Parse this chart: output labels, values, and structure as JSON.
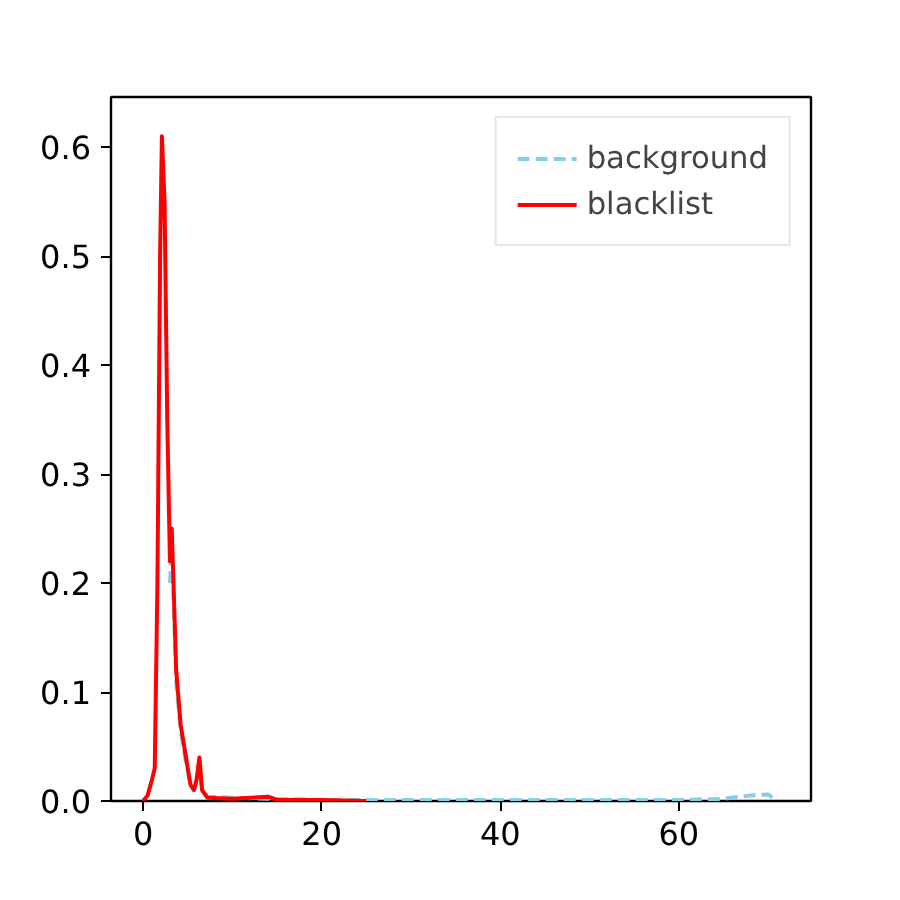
{
  "chart_data": {
    "type": "line",
    "xlim": [
      -3.6,
      74.8
    ],
    "ylim": [
      0,
      0.646
    ],
    "xticks": [
      0,
      20,
      40,
      60
    ],
    "yticks": [
      {
        "value": 0,
        "label": "0.0"
      },
      0.1,
      0.2,
      0.3,
      0.4,
      0.5,
      0.6
    ],
    "grid": false,
    "legend": "top right",
    "series": [
      {
        "name": "background",
        "color": "#87ceeb",
        "line_style": "dashed",
        "x": [
          3.0,
          3.2,
          3.4,
          3.7,
          4.2,
          4.8,
          5.3,
          5.7,
          6.0,
          6.3,
          6.6,
          7.2,
          10,
          14,
          20,
          30,
          40,
          50,
          60,
          65,
          68,
          70,
          71
        ],
        "values": [
          0.2,
          0.23,
          0.19,
          0.11,
          0.065,
          0.035,
          0.015,
          0.01,
          0.018,
          0.03,
          0.01,
          0.004,
          0.003,
          0.002,
          0.001,
          0.001,
          0.001,
          0.001,
          0.001,
          0.002,
          0.005,
          0.006,
          0
        ]
      },
      {
        "name": "blacklist",
        "color": "#ff0000",
        "line_style": "solid",
        "x": [
          0,
          0.5,
          1.0,
          1.3,
          1.6,
          1.9,
          2.1,
          2.4,
          2.7,
          3.0,
          3.2,
          3.4,
          3.7,
          4.2,
          4.8,
          5.3,
          5.7,
          6.0,
          6.3,
          6.6,
          7.2,
          10,
          14,
          15,
          20,
          25
        ],
        "values": [
          0,
          0.005,
          0.02,
          0.03,
          0.2,
          0.5,
          0.61,
          0.55,
          0.35,
          0.22,
          0.25,
          0.2,
          0.12,
          0.07,
          0.04,
          0.015,
          0.01,
          0.02,
          0.04,
          0.01,
          0.003,
          0.002,
          0.004,
          0.001,
          0.001,
          0
        ]
      }
    ]
  }
}
